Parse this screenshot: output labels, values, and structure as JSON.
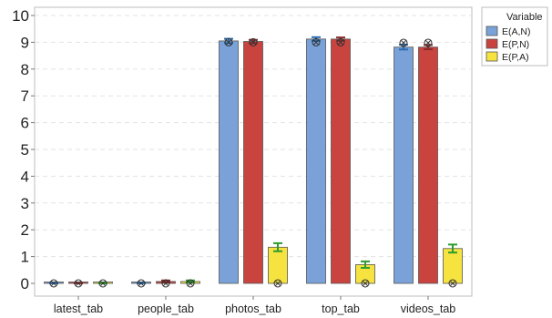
{
  "chart_data": {
    "type": "bar",
    "categories": [
      "latest_tab",
      "people_tab",
      "photos_tab",
      "top_tab",
      "videos_tab"
    ],
    "series": [
      {
        "name": "E(A,N)",
        "color": "#7aa2d8",
        "errorColor": "#2b6cb0",
        "values": [
          0,
          0,
          9.05,
          9.12,
          8.82
        ],
        "err": [
          0.02,
          0.02,
          0.08,
          0.07,
          0.09
        ],
        "markers": [
          0,
          0,
          9.0,
          9.0,
          8.98
        ]
      },
      {
        "name": "E(P,N)",
        "color": "#c9443f",
        "errorColor": "#8b2b2b",
        "values": [
          0,
          0.07,
          9.03,
          9.12,
          8.82
        ],
        "err": [
          0.02,
          0.04,
          0.06,
          0.06,
          0.08
        ],
        "markers": [
          0,
          0,
          9.0,
          9.0,
          8.98
        ]
      },
      {
        "name": "E(P,A)",
        "color": "#f6e33f",
        "errorColor": "#2e9c2e",
        "values": [
          0,
          0.07,
          1.35,
          0.7,
          1.3
        ],
        "err": [
          0.02,
          0.04,
          0.15,
          0.12,
          0.15
        ],
        "markers": [
          0,
          0,
          0,
          0,
          0
        ]
      }
    ],
    "xlabel": "",
    "ylabel": "",
    "ylim": [
      0,
      10
    ],
    "yticks": [
      0,
      1,
      2,
      3,
      4,
      5,
      6,
      7,
      8,
      9,
      10
    ],
    "grid": true,
    "legend": {
      "title": "Variable",
      "placement": "right"
    }
  }
}
